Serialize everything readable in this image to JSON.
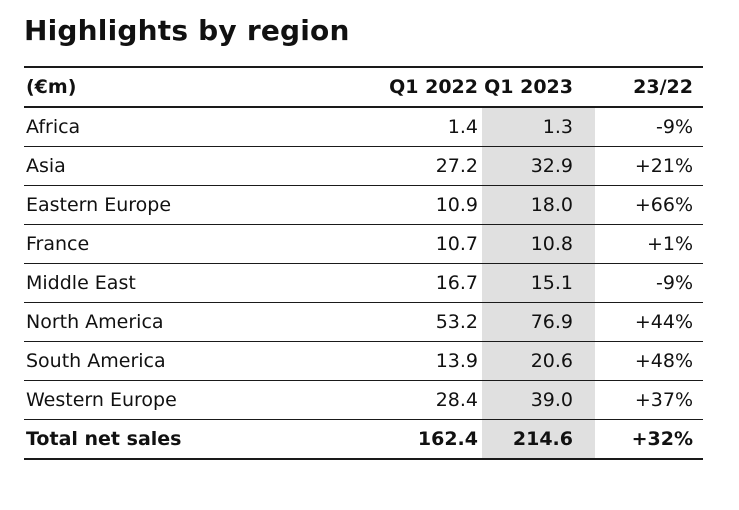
{
  "title": "Highlights by region",
  "table": {
    "columns": [
      "(€m)",
      "Q1 2022",
      "Q1 2023",
      "23/22"
    ],
    "rows": [
      {
        "region": "Africa",
        "q1_2022": "1.4",
        "q1_2023": "1.3",
        "change": "-9%"
      },
      {
        "region": "Asia",
        "q1_2022": "27.2",
        "q1_2023": "32.9",
        "change": "+21%"
      },
      {
        "region": "Eastern Europe",
        "q1_2022": "10.9",
        "q1_2023": "18.0",
        "change": "+66%"
      },
      {
        "region": "France",
        "q1_2022": "10.7",
        "q1_2023": "10.8",
        "change": "+1%"
      },
      {
        "region": "Middle East",
        "q1_2022": "16.7",
        "q1_2023": "15.1",
        "change": "-9%"
      },
      {
        "region": "North America",
        "q1_2022": "53.2",
        "q1_2023": "76.9",
        "change": "+44%"
      },
      {
        "region": "South America",
        "q1_2022": "13.9",
        "q1_2023": "20.6",
        "change": "+48%"
      },
      {
        "region": "Western Europe",
        "q1_2022": "28.4",
        "q1_2023": "39.0",
        "change": "+37%"
      }
    ],
    "total": {
      "region": "Total net sales",
      "q1_2022": "162.4",
      "q1_2023": "214.6",
      "change": "+32%"
    }
  },
  "colors": {
    "highlight_column": "#e0e0e0",
    "rule": "#1a1a1a",
    "text": "#111111"
  }
}
